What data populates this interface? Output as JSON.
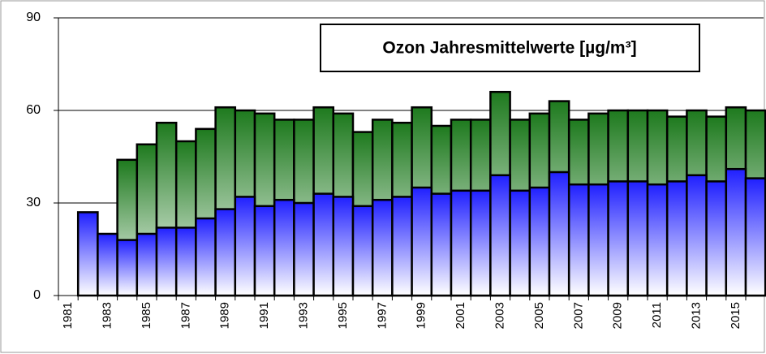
{
  "chart_data": {
    "type": "bar",
    "title": "Ozon Jahresmittelwerte [µg/m³]",
    "categories": [
      "1981",
      null,
      "1983",
      null,
      "1985",
      null,
      "1987",
      null,
      "1989",
      null,
      "1991",
      null,
      "1993",
      null,
      "1995",
      null,
      "1997",
      null,
      "1999",
      null,
      "2001",
      null,
      "2003",
      null,
      "2005",
      null,
      "2007",
      null,
      "2009",
      null,
      "2011",
      null,
      "2013",
      null,
      "2015",
      null
    ],
    "series": [
      {
        "color": "#1e7a1e",
        "values": [
          null,
          null,
          null,
          44,
          49,
          56,
          50,
          54,
          61,
          60,
          59,
          57,
          57,
          61,
          59,
          53,
          57,
          56,
          61,
          55,
          57,
          57,
          66,
          57,
          59,
          63,
          57,
          59,
          60,
          60,
          60,
          58,
          60,
          58,
          61,
          60
        ]
      },
      {
        "color": "#2020ff",
        "values": [
          null,
          27,
          20,
          18,
          20,
          22,
          22,
          25,
          28,
          32,
          29,
          31,
          30,
          33,
          32,
          29,
          31,
          32,
          35,
          33,
          34,
          34,
          39,
          34,
          35,
          40,
          36,
          36,
          37,
          37,
          36,
          37,
          39,
          37,
          41,
          38
        ]
      }
    ],
    "ylim": [
      0,
      90
    ],
    "yticks": [
      0,
      30,
      60,
      90
    ],
    "grid": true
  }
}
